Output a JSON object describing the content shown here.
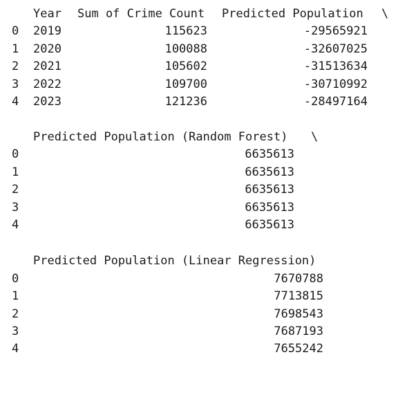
{
  "output_blocks": [
    {
      "header": {
        "year": "Year",
        "sum_crime_count": "Sum of Crime Count",
        "predicted_population": "Predicted Population",
        "continuation": "\\"
      },
      "rows": [
        {
          "index": "0",
          "year": "2019",
          "sum_crime_count": "115623",
          "predicted_population": "-29565921"
        },
        {
          "index": "1",
          "year": "2020",
          "sum_crime_count": "100088",
          "predicted_population": "-32607025"
        },
        {
          "index": "2",
          "year": "2021",
          "sum_crime_count": "105602",
          "predicted_population": "-31513634"
        },
        {
          "index": "3",
          "year": "2022",
          "sum_crime_count": "109700",
          "predicted_population": "-30710992"
        },
        {
          "index": "4",
          "year": "2023",
          "sum_crime_count": "121236",
          "predicted_population": "-28497164"
        }
      ]
    },
    {
      "header": {
        "predicted_population_random_forest": "Predicted Population (Random Forest)",
        "continuation": "\\"
      },
      "rows": [
        {
          "index": "0",
          "value": "6635613"
        },
        {
          "index": "1",
          "value": "6635613"
        },
        {
          "index": "2",
          "value": "6635613"
        },
        {
          "index": "3",
          "value": "6635613"
        },
        {
          "index": "4",
          "value": "6635613"
        }
      ]
    },
    {
      "header": {
        "predicted_population_linear_regression": "Predicted Population (Linear Regression)"
      },
      "rows": [
        {
          "index": "0",
          "value": "7670788"
        },
        {
          "index": "1",
          "value": "7713815"
        },
        {
          "index": "2",
          "value": "7698543"
        },
        {
          "index": "3",
          "value": "7687193"
        },
        {
          "index": "4",
          "value": "7655242"
        }
      ]
    }
  ]
}
